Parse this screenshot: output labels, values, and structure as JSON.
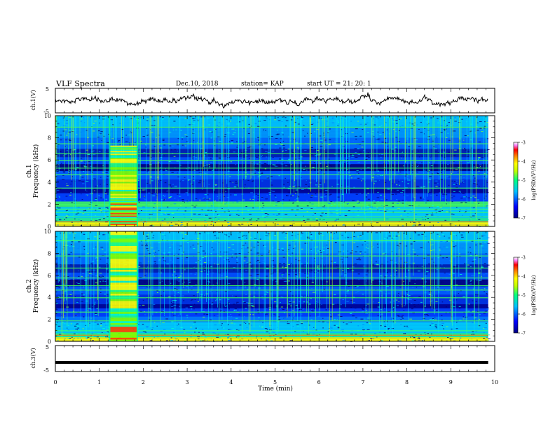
{
  "header": {
    "title": "VLF Spectra",
    "date": "Dec.10, 2018",
    "station": "station= KAP",
    "start": "start  UT  =  21: 20: 1"
  },
  "chart_data": [
    {
      "type": "line",
      "panel": "waveform-top",
      "ylabel": "ch.1(V)",
      "ylim": [
        -5,
        5
      ],
      "yticks": [
        "5",
        "-5"
      ],
      "xlim": [
        0,
        10
      ],
      "color": "#000000"
    },
    {
      "type": "heatmap",
      "panel": "spectrogram-ch1",
      "ylabel": "ch.1\nFrequency (kHz)",
      "ylabel_lines": [
        "ch.1",
        "Frequency (kHz)"
      ],
      "ylim": [
        0,
        10
      ],
      "yticks": [
        "0",
        "2",
        "4",
        "6",
        "8",
        "10"
      ],
      "xlim": [
        0,
        10
      ],
      "colorbar": {
        "label": "log(PSD)(V²/Hz)",
        "min": -7,
        "max": -3,
        "ticks": [
          "-3",
          "-4",
          "-5",
          "-6",
          "-7"
        ]
      },
      "burst_interval_min": [
        1.25,
        1.85
      ]
    },
    {
      "type": "heatmap",
      "panel": "spectrogram-ch2",
      "ylabel_lines": [
        "ch.2",
        "Frequency (kHz)"
      ],
      "ylim": [
        0,
        10
      ],
      "yticks": [
        "0",
        "2",
        "4",
        "6",
        "8",
        "10"
      ],
      "xlim": [
        0,
        10
      ],
      "colorbar": {
        "label": "log(PSD)(V²/Hz)",
        "min": -7,
        "max": -3,
        "ticks": [
          "-3",
          "-4",
          "-5",
          "-6",
          "-7"
        ]
      },
      "burst_interval_min": [
        1.25,
        1.85
      ]
    },
    {
      "type": "line",
      "panel": "waveform-bottom",
      "ylabel": "ch.3(V)",
      "ylim": [
        -5,
        5
      ],
      "yticks": [
        "5",
        "-5"
      ],
      "xlim": [
        0,
        10
      ],
      "x": [
        0,
        9.85
      ],
      "y": [
        -1.5,
        -1.5
      ],
      "color": "#000000"
    }
  ],
  "xaxis": {
    "label": "Time  (min)",
    "ticks": [
      "0",
      "1",
      "2",
      "3",
      "4",
      "5",
      "6",
      "7",
      "8",
      "9",
      "10"
    ]
  },
  "colors": [
    "#000090",
    "#0000ff",
    "#0080ff",
    "#00e0ff",
    "#20ff80",
    "#a0ff00",
    "#ffff00",
    "#ff8000",
    "#ff0000",
    "#ff80ff",
    "#ffffff"
  ]
}
